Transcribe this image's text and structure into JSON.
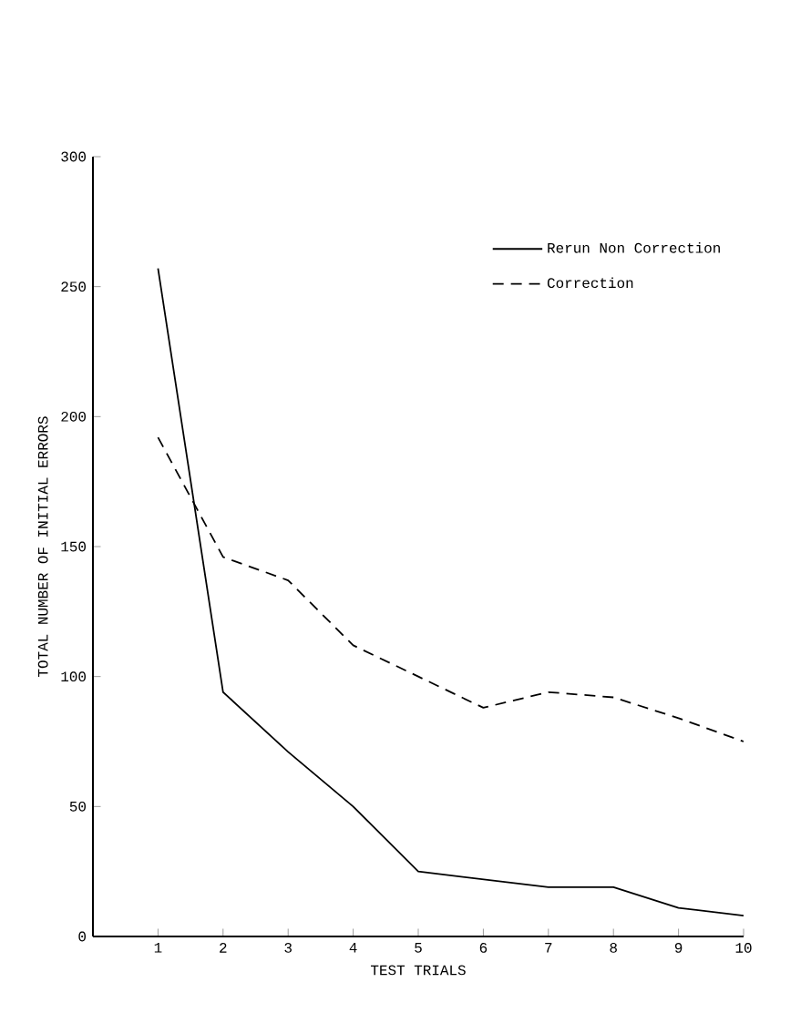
{
  "chart_data": {
    "type": "line",
    "xlabel": "TEST TRIALS",
    "ylabel": "TOTAL NUMBER OF INITIAL ERRORS",
    "x": [
      1,
      2,
      3,
      4,
      5,
      6,
      7,
      8,
      9,
      10
    ],
    "series": [
      {
        "name": "Rerun Non Correction",
        "color": "#000000",
        "line_style": "solid",
        "values": [
          257,
          94,
          71,
          50,
          25,
          22,
          19,
          19,
          11,
          8
        ]
      },
      {
        "name": "Correction",
        "color": "#000000",
        "line_style": "dashed",
        "values": [
          192,
          146,
          137,
          112,
          100,
          88,
          94,
          92,
          84,
          75
        ]
      }
    ],
    "xlim": [
      0,
      10
    ],
    "ylim": [
      0,
      300
    ],
    "xticks": [
      1,
      2,
      3,
      4,
      5,
      6,
      7,
      8,
      9,
      10
    ],
    "yticks": [
      0,
      50,
      100,
      150,
      200,
      250,
      300
    ],
    "legend": "top right",
    "grid": false,
    "marker": "none"
  }
}
